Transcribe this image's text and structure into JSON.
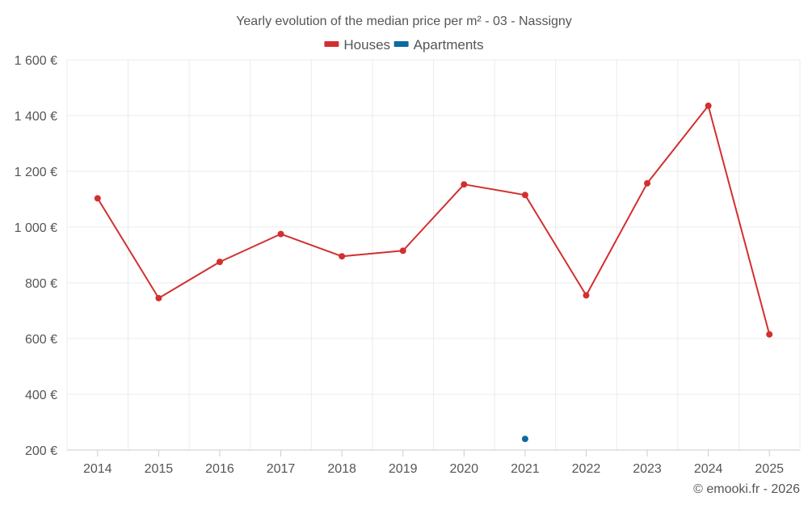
{
  "chart_data": {
    "type": "line",
    "title": "Yearly evolution of the median price per m² - 03 - Nassigny",
    "categories": [
      "2014",
      "2015",
      "2016",
      "2017",
      "2018",
      "2019",
      "2020",
      "2021",
      "2022",
      "2023",
      "2024",
      "2025"
    ],
    "series": [
      {
        "name": "Houses",
        "color": "#d32f2f",
        "values": [
          1103,
          745,
          875,
          975,
          895,
          915,
          1153,
          1115,
          755,
          1157,
          1435,
          615
        ]
      },
      {
        "name": "Apartments",
        "color": "#0b6ba1",
        "values": [
          null,
          null,
          null,
          null,
          null,
          null,
          null,
          240,
          null,
          null,
          null,
          null
        ]
      }
    ],
    "ylim": [
      200,
      1600
    ],
    "yticks": [
      200,
      400,
      600,
      800,
      1000,
      1200,
      1400,
      1600
    ],
    "ytick_labels": [
      "200 €",
      "400 €",
      "600 €",
      "800 €",
      "1 000 €",
      "1 200 €",
      "1 400 €",
      "1 600 €"
    ],
    "grid": true,
    "legend_position": "top-center",
    "credit": "© emooki.fr - 2026"
  }
}
